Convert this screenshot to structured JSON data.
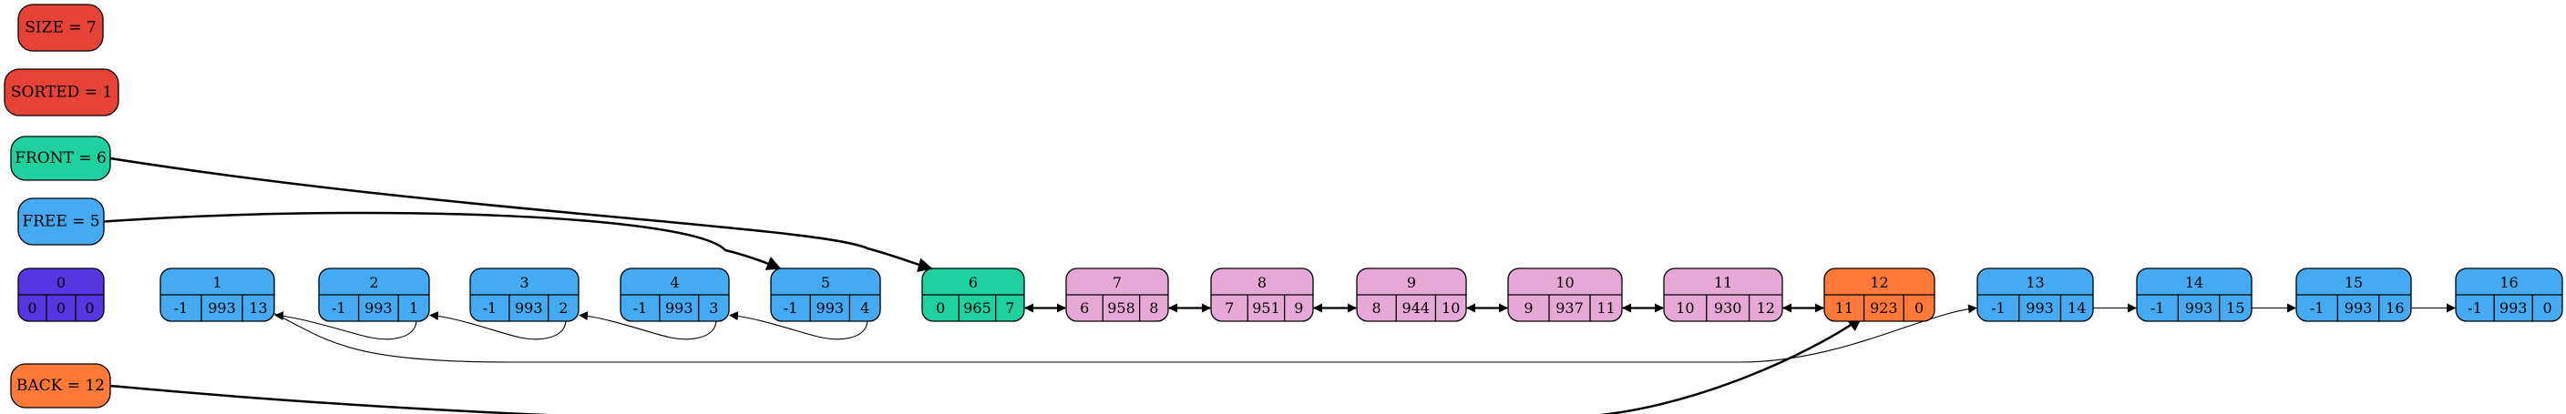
{
  "colors": {
    "free": "#45aaf2",
    "front": "#20d1a0",
    "back": "#ff7a38",
    "data": "#e6a9d7",
    "header": "#5536e0",
    "meta": "#e74236",
    "stroke": "#000000"
  },
  "labels": [
    {
      "id": "size",
      "text": "SIZE = 7",
      "color": "meta"
    },
    {
      "id": "sorted",
      "text": "SORTED = 1",
      "color": "meta"
    },
    {
      "id": "front",
      "text": "FRONT = 6",
      "color": "front"
    },
    {
      "id": "free",
      "text": "FREE = 5",
      "color": "free"
    },
    {
      "id": "back",
      "text": "BACK = 12",
      "color": "back"
    }
  ],
  "nodes": [
    {
      "index": "0",
      "prev": "0",
      "value": "0",
      "next": "0",
      "color": "header"
    },
    {
      "index": "1",
      "prev": "-1",
      "value": "993",
      "next": "13",
      "color": "free"
    },
    {
      "index": "2",
      "prev": "-1",
      "value": "993",
      "next": "1",
      "color": "free"
    },
    {
      "index": "3",
      "prev": "-1",
      "value": "993",
      "next": "2",
      "color": "free"
    },
    {
      "index": "4",
      "prev": "-1",
      "value": "993",
      "next": "3",
      "color": "free"
    },
    {
      "index": "5",
      "prev": "-1",
      "value": "993",
      "next": "4",
      "color": "free"
    },
    {
      "index": "6",
      "prev": "0",
      "value": "965",
      "next": "7",
      "color": "front"
    },
    {
      "index": "7",
      "prev": "6",
      "value": "958",
      "next": "8",
      "color": "data"
    },
    {
      "index": "8",
      "prev": "7",
      "value": "951",
      "next": "9",
      "color": "data"
    },
    {
      "index": "9",
      "prev": "8",
      "value": "944",
      "next": "10",
      "color": "data"
    },
    {
      "index": "10",
      "prev": "9",
      "value": "937",
      "next": "11",
      "color": "data"
    },
    {
      "index": "11",
      "prev": "10",
      "value": "930",
      "next": "12",
      "color": "data"
    },
    {
      "index": "12",
      "prev": "11",
      "value": "923",
      "next": "0",
      "color": "back"
    },
    {
      "index": "13",
      "prev": "-1",
      "value": "993",
      "next": "14",
      "color": "free"
    },
    {
      "index": "14",
      "prev": "-1",
      "value": "993",
      "next": "15",
      "color": "free"
    },
    {
      "index": "15",
      "prev": "-1",
      "value": "993",
      "next": "16",
      "color": "free"
    },
    {
      "index": "16",
      "prev": "-1",
      "value": "993",
      "next": "0",
      "color": "free"
    }
  ],
  "data_links": [
    {
      "from": "6",
      "to": "7"
    },
    {
      "from": "7",
      "to": "8"
    },
    {
      "from": "8",
      "to": "9"
    },
    {
      "from": "9",
      "to": "10"
    },
    {
      "from": "10",
      "to": "11"
    },
    {
      "from": "11",
      "to": "12"
    }
  ],
  "free_links": [
    {
      "from": "5",
      "to": "4"
    },
    {
      "from": "4",
      "to": "3"
    },
    {
      "from": "3",
      "to": "2"
    },
    {
      "from": "2",
      "to": "1"
    },
    {
      "from": "1",
      "to": "13"
    },
    {
      "from": "13",
      "to": "14"
    },
    {
      "from": "14",
      "to": "15"
    },
    {
      "from": "15",
      "to": "16"
    }
  ],
  "pointers": [
    {
      "from": "front",
      "to": "6"
    },
    {
      "from": "free",
      "to": "5"
    },
    {
      "from": "back",
      "to": "12"
    }
  ]
}
